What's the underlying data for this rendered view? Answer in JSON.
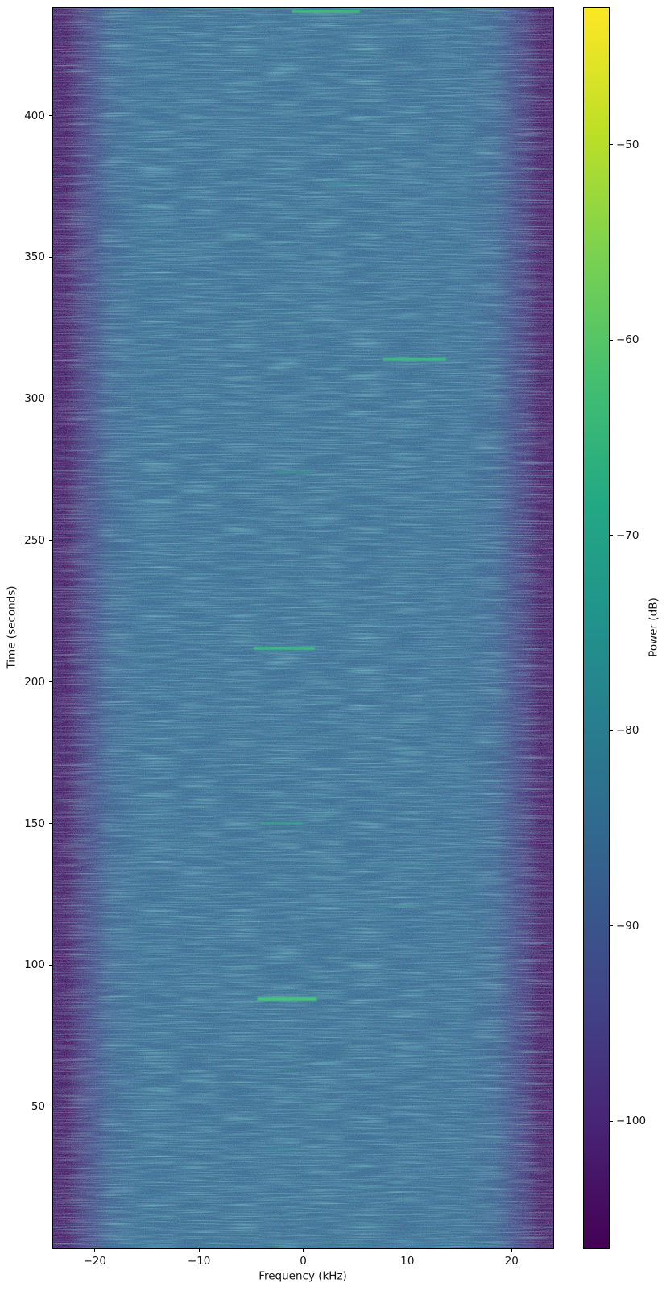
{
  "chart_data": {
    "type": "heatmap",
    "title": "",
    "xlabel": "Frequency (kHz)",
    "ylabel": "Time (seconds)",
    "colorbar_label": "Power (dB)",
    "colormap": "viridis",
    "xlim": [
      -24,
      24
    ],
    "ylim": [
      0,
      438
    ],
    "x_ticks": [
      -20,
      -10,
      0,
      10,
      20
    ],
    "x_tick_labels": [
      "−20",
      "−10",
      "0",
      "10",
      "20"
    ],
    "y_ticks": [
      400,
      350,
      300,
      250,
      200,
      150,
      100,
      50
    ],
    "y_tick_labels": [
      "400",
      "350",
      "300",
      "250",
      "200",
      "150",
      "100",
      "50"
    ],
    "colorbar_range": [
      -106.5,
      -43
    ],
    "colorbar_ticks": [
      -50,
      -60,
      -70,
      -80,
      -90,
      -100
    ],
    "colorbar_tick_labels": [
      "−50",
      "−60",
      "−70",
      "−80",
      "−90",
      "−100"
    ],
    "viridis_stops": [
      "#440154",
      "#482475",
      "#414487",
      "#355f8d",
      "#2a788e",
      "#21918c",
      "#22a884",
      "#44bf70",
      "#7ad151",
      "#bddf26",
      "#fde725"
    ],
    "background": {
      "description": "Noisy steel-blue passband (~ -80 dB) with dark purple roll-off bands at both frequency edges (~ -105 dB)",
      "center_color": "#2f6b8e",
      "edge_color": "#440154",
      "gradient": [
        {
          "o": 0.0,
          "c": "#440154"
        },
        {
          "o": 0.026,
          "c": "#440154"
        },
        {
          "o": 0.05,
          "c": "#45266f"
        },
        {
          "o": 0.08,
          "c": "#3e4080"
        },
        {
          "o": 0.115,
          "c": "#35608b"
        },
        {
          "o": 0.17,
          "c": "#306a8e"
        },
        {
          "o": 0.5,
          "c": "#2f6c8e"
        },
        {
          "o": 0.83,
          "c": "#306a8e"
        },
        {
          "o": 0.885,
          "c": "#35608b"
        },
        {
          "o": 0.92,
          "c": "#3e4080"
        },
        {
          "o": 0.95,
          "c": "#45266f"
        },
        {
          "o": 0.974,
          "c": "#440154"
        },
        {
          "o": 1.0,
          "c": "#440154"
        }
      ]
    },
    "feature_levels": {
      "strongest": {
        "h": 5,
        "c": "#49c67e",
        "o": 0.95
      },
      "strong": {
        "h": 4,
        "c": "#3dbd82",
        "o": 0.9
      },
      "medium": {
        "h": 3,
        "c": "#37a98a",
        "o": 0.75
      },
      "faint": {
        "h": 2.5,
        "c": "#339b90",
        "o": 0.55
      },
      "trace": {
        "h": 2,
        "c": "#45a5a0",
        "o": 0.28
      }
    },
    "features": [
      {
        "time_s": 437,
        "freq_start_khz": -1.0,
        "freq_end_khz": 5.3,
        "level": "strong",
        "approx_peak_db": -66
      },
      {
        "time_s": 376,
        "freq_start_khz": 2.6,
        "freq_end_khz": 6.0,
        "level": "faint",
        "approx_peak_db": -74
      },
      {
        "time_s": 314,
        "freq_start_khz": 7.8,
        "freq_end_khz": 13.6,
        "level": "strong",
        "approx_peak_db": -66
      },
      {
        "time_s": 274,
        "freq_start_khz": -2.5,
        "freq_end_khz": 0.6,
        "level": "faint",
        "approx_peak_db": -74
      },
      {
        "time_s": 212,
        "freq_start_khz": -4.6,
        "freq_end_khz": 1.0,
        "level": "strong",
        "approx_peak_db": -65
      },
      {
        "time_s": 150,
        "freq_start_khz": -4.0,
        "freq_end_khz": -0.2,
        "level": "medium",
        "approx_peak_db": -70
      },
      {
        "time_s": 88,
        "freq_start_khz": -4.3,
        "freq_end_khz": 1.2,
        "level": "strongest",
        "approx_peak_db": -63
      },
      {
        "time_s": 35,
        "freq_start_khz": -3.8,
        "freq_end_khz": -0.9,
        "level": "faint",
        "approx_peak_db": -75
      },
      {
        "time_s": 135,
        "freq_start_khz": 0.5,
        "freq_end_khz": 12.0,
        "level": "trace",
        "approx_peak_db": -78
      },
      {
        "time_s": 121,
        "freq_start_khz": 3.0,
        "freq_end_khz": 11.0,
        "level": "trace",
        "approx_peak_db": -78
      }
    ]
  }
}
